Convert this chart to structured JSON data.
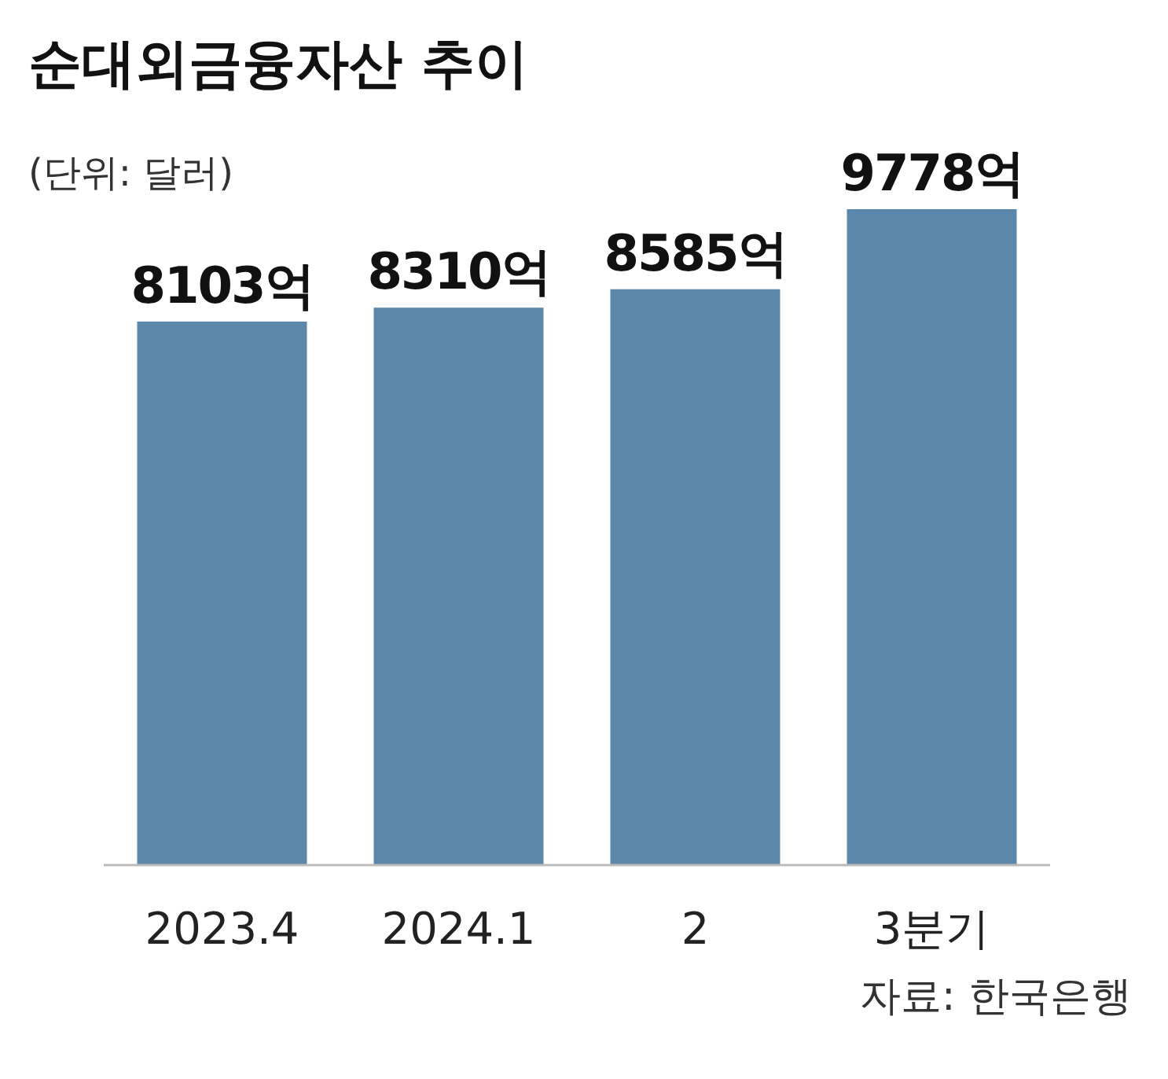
{
  "chart_data": {
    "type": "bar",
    "title": "순대외금융자산 추이",
    "subtitle": "(단위: 달러)",
    "categories": [
      "2023.4",
      "2024.1",
      "2",
      "3분기"
    ],
    "values": [
      8103,
      8310,
      8585,
      9778
    ],
    "value_labels": [
      "8103억",
      "8310억",
      "8585억",
      "9778억"
    ],
    "color": "#5b87ab",
    "tick_labels": "x",
    "annotations": [
      "자료: 한국은행"
    ]
  }
}
